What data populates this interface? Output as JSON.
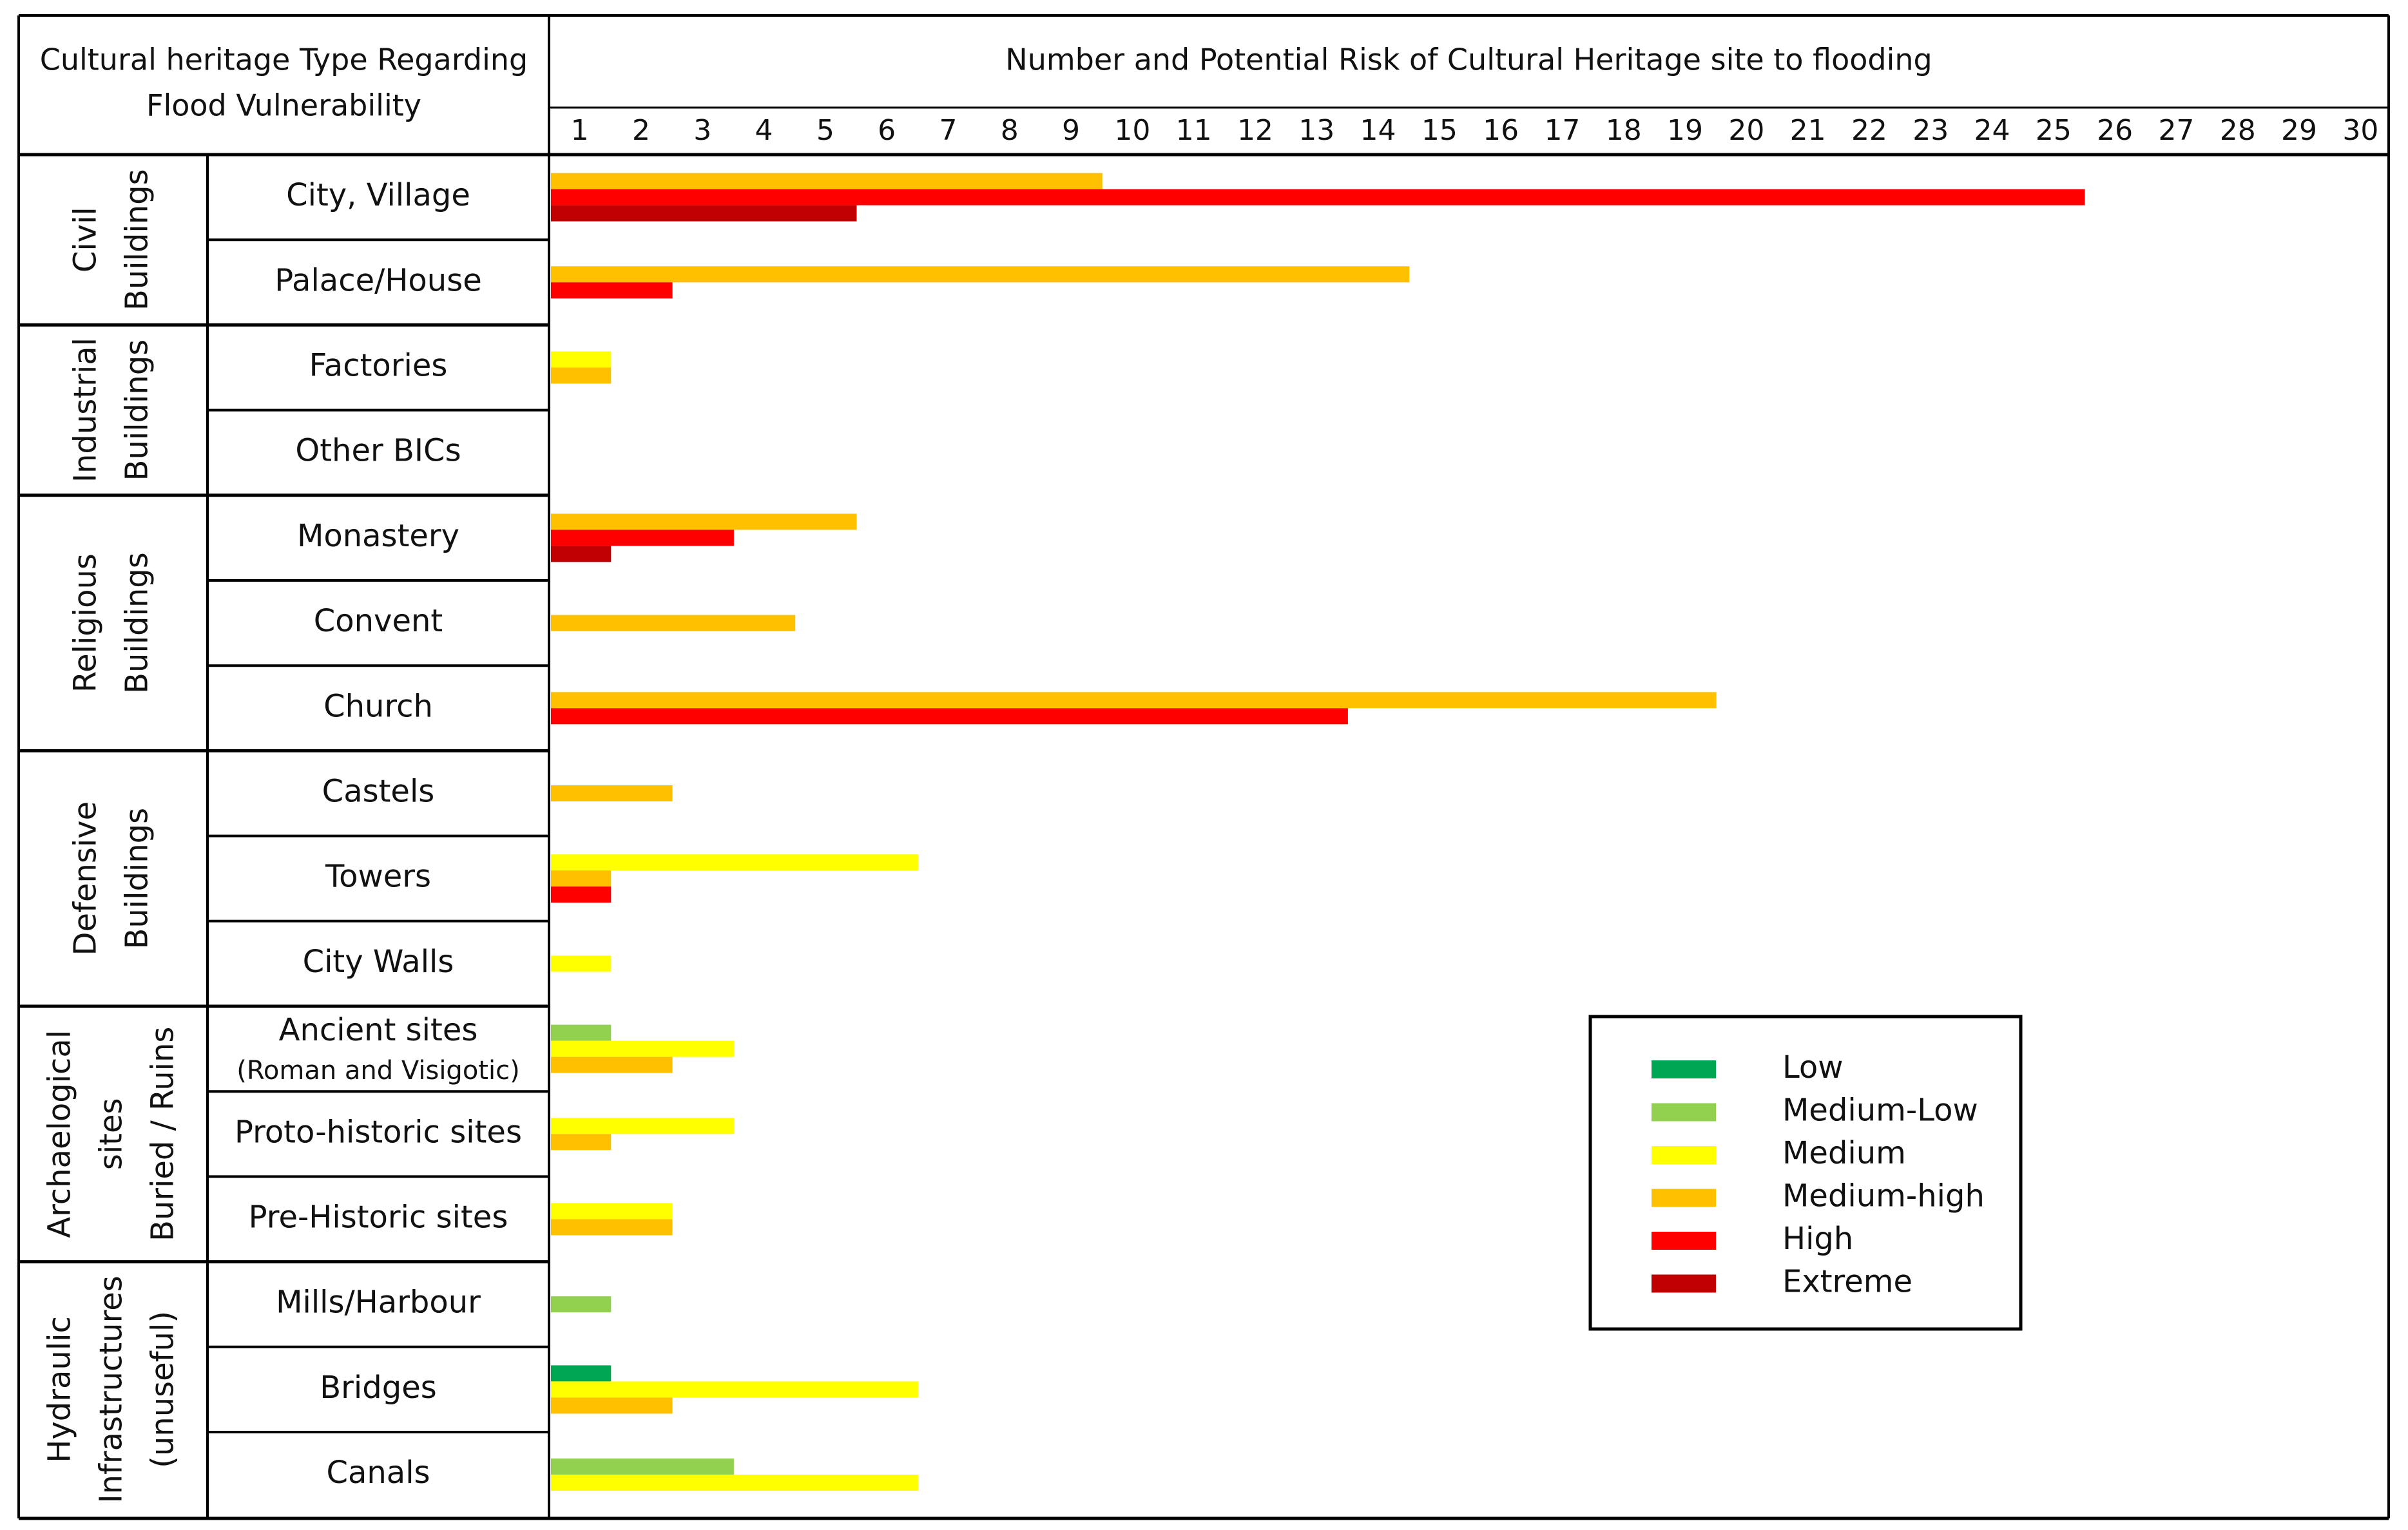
{
  "chart_data": {
    "type": "bar",
    "orientation": "horizontal",
    "header_left": [
      "Cultural heritage Type Regarding",
      "Flood Vulnerability"
    ],
    "header_right": "Number and Potential Risk of Cultural Heritage site to flooding",
    "x_ticks": [
      "1",
      "2",
      "3",
      "4",
      "5",
      "6",
      "7",
      "8",
      "9",
      "10",
      "11",
      "12",
      "13",
      "14",
      "15",
      "16",
      "17",
      "18",
      "19",
      "20",
      "21",
      "22",
      "23",
      "24",
      "25",
      "26",
      "27",
      "28",
      "29",
      "30"
    ],
    "xlim": [
      0,
      30
    ],
    "grid": false,
    "legend_position": "lower-right",
    "risk_levels": [
      {
        "key": "low",
        "label": "Low",
        "color": "#00a651"
      },
      {
        "key": "medium_low",
        "label": "Medium-Low",
        "color": "#92d050"
      },
      {
        "key": "medium",
        "label": "Medium",
        "color": "#ffff00"
      },
      {
        "key": "medium_high",
        "label": "Medium-high",
        "color": "#ffc000"
      },
      {
        "key": "high",
        "label": "High",
        "color": "#ff0000"
      },
      {
        "key": "extreme",
        "label": "Extreme",
        "color": "#c00000"
      }
    ],
    "groups": [
      {
        "label": [
          "Civil",
          "Buildings"
        ],
        "rows": [
          0,
          1
        ]
      },
      {
        "label": [
          "Industrial",
          "Buildings"
        ],
        "rows": [
          2,
          3
        ]
      },
      {
        "label": [
          "Religious",
          "Buildings"
        ],
        "rows": [
          4,
          5,
          6
        ]
      },
      {
        "label": [
          "Defensive",
          "Buildings"
        ],
        "rows": [
          7,
          8,
          9
        ]
      },
      {
        "label": [
          "Archaelogical",
          "sites",
          "Buried / Ruins"
        ],
        "rows": [
          10,
          11,
          12
        ]
      },
      {
        "label": [
          "Hydraulic",
          "Infrastructures",
          "(unuseful)"
        ],
        "rows": [
          13,
          14,
          15
        ]
      }
    ],
    "rows": [
      {
        "label": [
          "City, Village"
        ],
        "bars": [
          {
            "level": "medium_high",
            "value": 9
          },
          {
            "level": "high",
            "value": 25
          },
          {
            "level": "extreme",
            "value": 5
          }
        ]
      },
      {
        "label": [
          "Palace/House"
        ],
        "bars": [
          {
            "level": "medium_high",
            "value": 14
          },
          {
            "level": "high",
            "value": 2
          }
        ]
      },
      {
        "label": [
          "Factories"
        ],
        "bars": [
          {
            "level": "medium",
            "value": 1
          },
          {
            "level": "medium_high",
            "value": 1
          }
        ]
      },
      {
        "label": [
          "Other BICs"
        ],
        "bars": []
      },
      {
        "label": [
          "Monastery"
        ],
        "bars": [
          {
            "level": "medium_high",
            "value": 5
          },
          {
            "level": "high",
            "value": 3
          },
          {
            "level": "extreme",
            "value": 1
          }
        ]
      },
      {
        "label": [
          "Convent"
        ],
        "bars": [
          {
            "level": "medium_high",
            "value": 4
          }
        ]
      },
      {
        "label": [
          "Church"
        ],
        "bars": [
          {
            "level": "medium_high",
            "value": 19
          },
          {
            "level": "high",
            "value": 13
          }
        ]
      },
      {
        "label": [
          "Castels"
        ],
        "bars": [
          {
            "level": "medium_high",
            "value": 2
          }
        ]
      },
      {
        "label": [
          "Towers"
        ],
        "bars": [
          {
            "level": "medium",
            "value": 6
          },
          {
            "level": "medium_high",
            "value": 1
          },
          {
            "level": "high",
            "value": 1
          }
        ]
      },
      {
        "label": [
          "City Walls"
        ],
        "bars": [
          {
            "level": "medium",
            "value": 1
          }
        ]
      },
      {
        "label": [
          "Ancient sites",
          "(Roman and Visigotic)"
        ],
        "bars": [
          {
            "level": "medium_low",
            "value": 1
          },
          {
            "level": "medium",
            "value": 3
          },
          {
            "level": "medium_high",
            "value": 2
          }
        ]
      },
      {
        "label": [
          "Proto-historic sites"
        ],
        "bars": [
          {
            "level": "medium",
            "value": 3
          },
          {
            "level": "medium_high",
            "value": 1
          }
        ]
      },
      {
        "label": [
          "Pre-Historic sites"
        ],
        "bars": [
          {
            "level": "medium",
            "value": 2
          },
          {
            "level": "medium_high",
            "value": 2
          }
        ]
      },
      {
        "label": [
          "Mills/Harbour"
        ],
        "bars": [
          {
            "level": "medium_low",
            "value": 1
          }
        ]
      },
      {
        "label": [
          "Bridges"
        ],
        "bars": [
          {
            "level": "low",
            "value": 1
          },
          {
            "level": "medium",
            "value": 6
          },
          {
            "level": "medium_high",
            "value": 2
          }
        ]
      },
      {
        "label": [
          "Canals"
        ],
        "bars": [
          {
            "level": "medium_low",
            "value": 3
          },
          {
            "level": "medium",
            "value": 6
          }
        ]
      }
    ]
  }
}
